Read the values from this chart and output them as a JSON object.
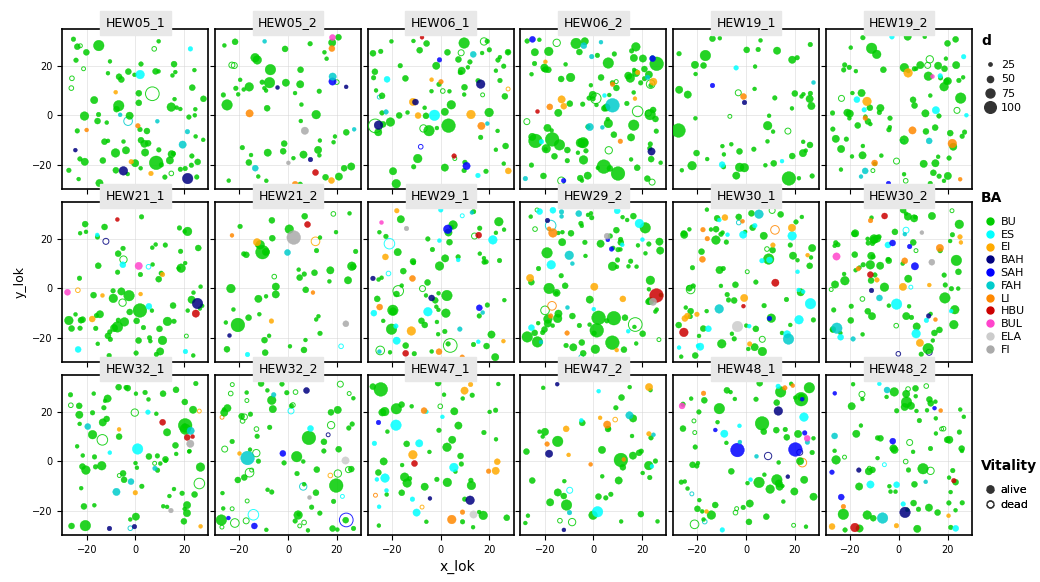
{
  "panels": [
    "HEW05_1",
    "HEW05_2",
    "HEW06_1",
    "HEW06_2",
    "HEW19_1",
    "HEW19_2",
    "HEW21_1",
    "HEW21_2",
    "HEW29_1",
    "HEW29_2",
    "HEW30_1",
    "HEW30_2",
    "HEW32_1",
    "HEW32_2",
    "HEW47_1",
    "HEW47_2",
    "HEW48_1",
    "HEW48_2"
  ],
  "nrows": 3,
  "ncols": 6,
  "xlim": [
    -30,
    30
  ],
  "ylim": [
    -30,
    35
  ],
  "xlabel": "x_lok",
  "ylabel": "y_lok",
  "ba_colors": {
    "BU": "#00cc00",
    "ES": "#00ffff",
    "EI": "#ffaa00",
    "BAH": "#000080",
    "SAH": "#0000ff",
    "FAH": "#00cccc",
    "LI": "#ff8800",
    "HBU": "#cc0000",
    "BUL": "#ff44cc",
    "ELA": "#cccccc",
    "FI": "#aaaaaa"
  },
  "ba_order": [
    "BU",
    "ES",
    "EI",
    "BAH",
    "SAH",
    "FAH",
    "LI",
    "HBU",
    "BUL",
    "ELA",
    "FI"
  ],
  "size_map": {
    "25": 10,
    "50": 25,
    "75": 50,
    "100": 80
  },
  "legend_sizes": [
    25,
    50,
    75,
    100
  ],
  "title_fontsize": 9,
  "axis_fontsize": 8,
  "tick_fontsize": 7,
  "legend_fontsize": 8,
  "panel_seeds": [
    1,
    2,
    3,
    4,
    5,
    6,
    7,
    8,
    9,
    10,
    11,
    12,
    13,
    14,
    15,
    16,
    17,
    18
  ]
}
